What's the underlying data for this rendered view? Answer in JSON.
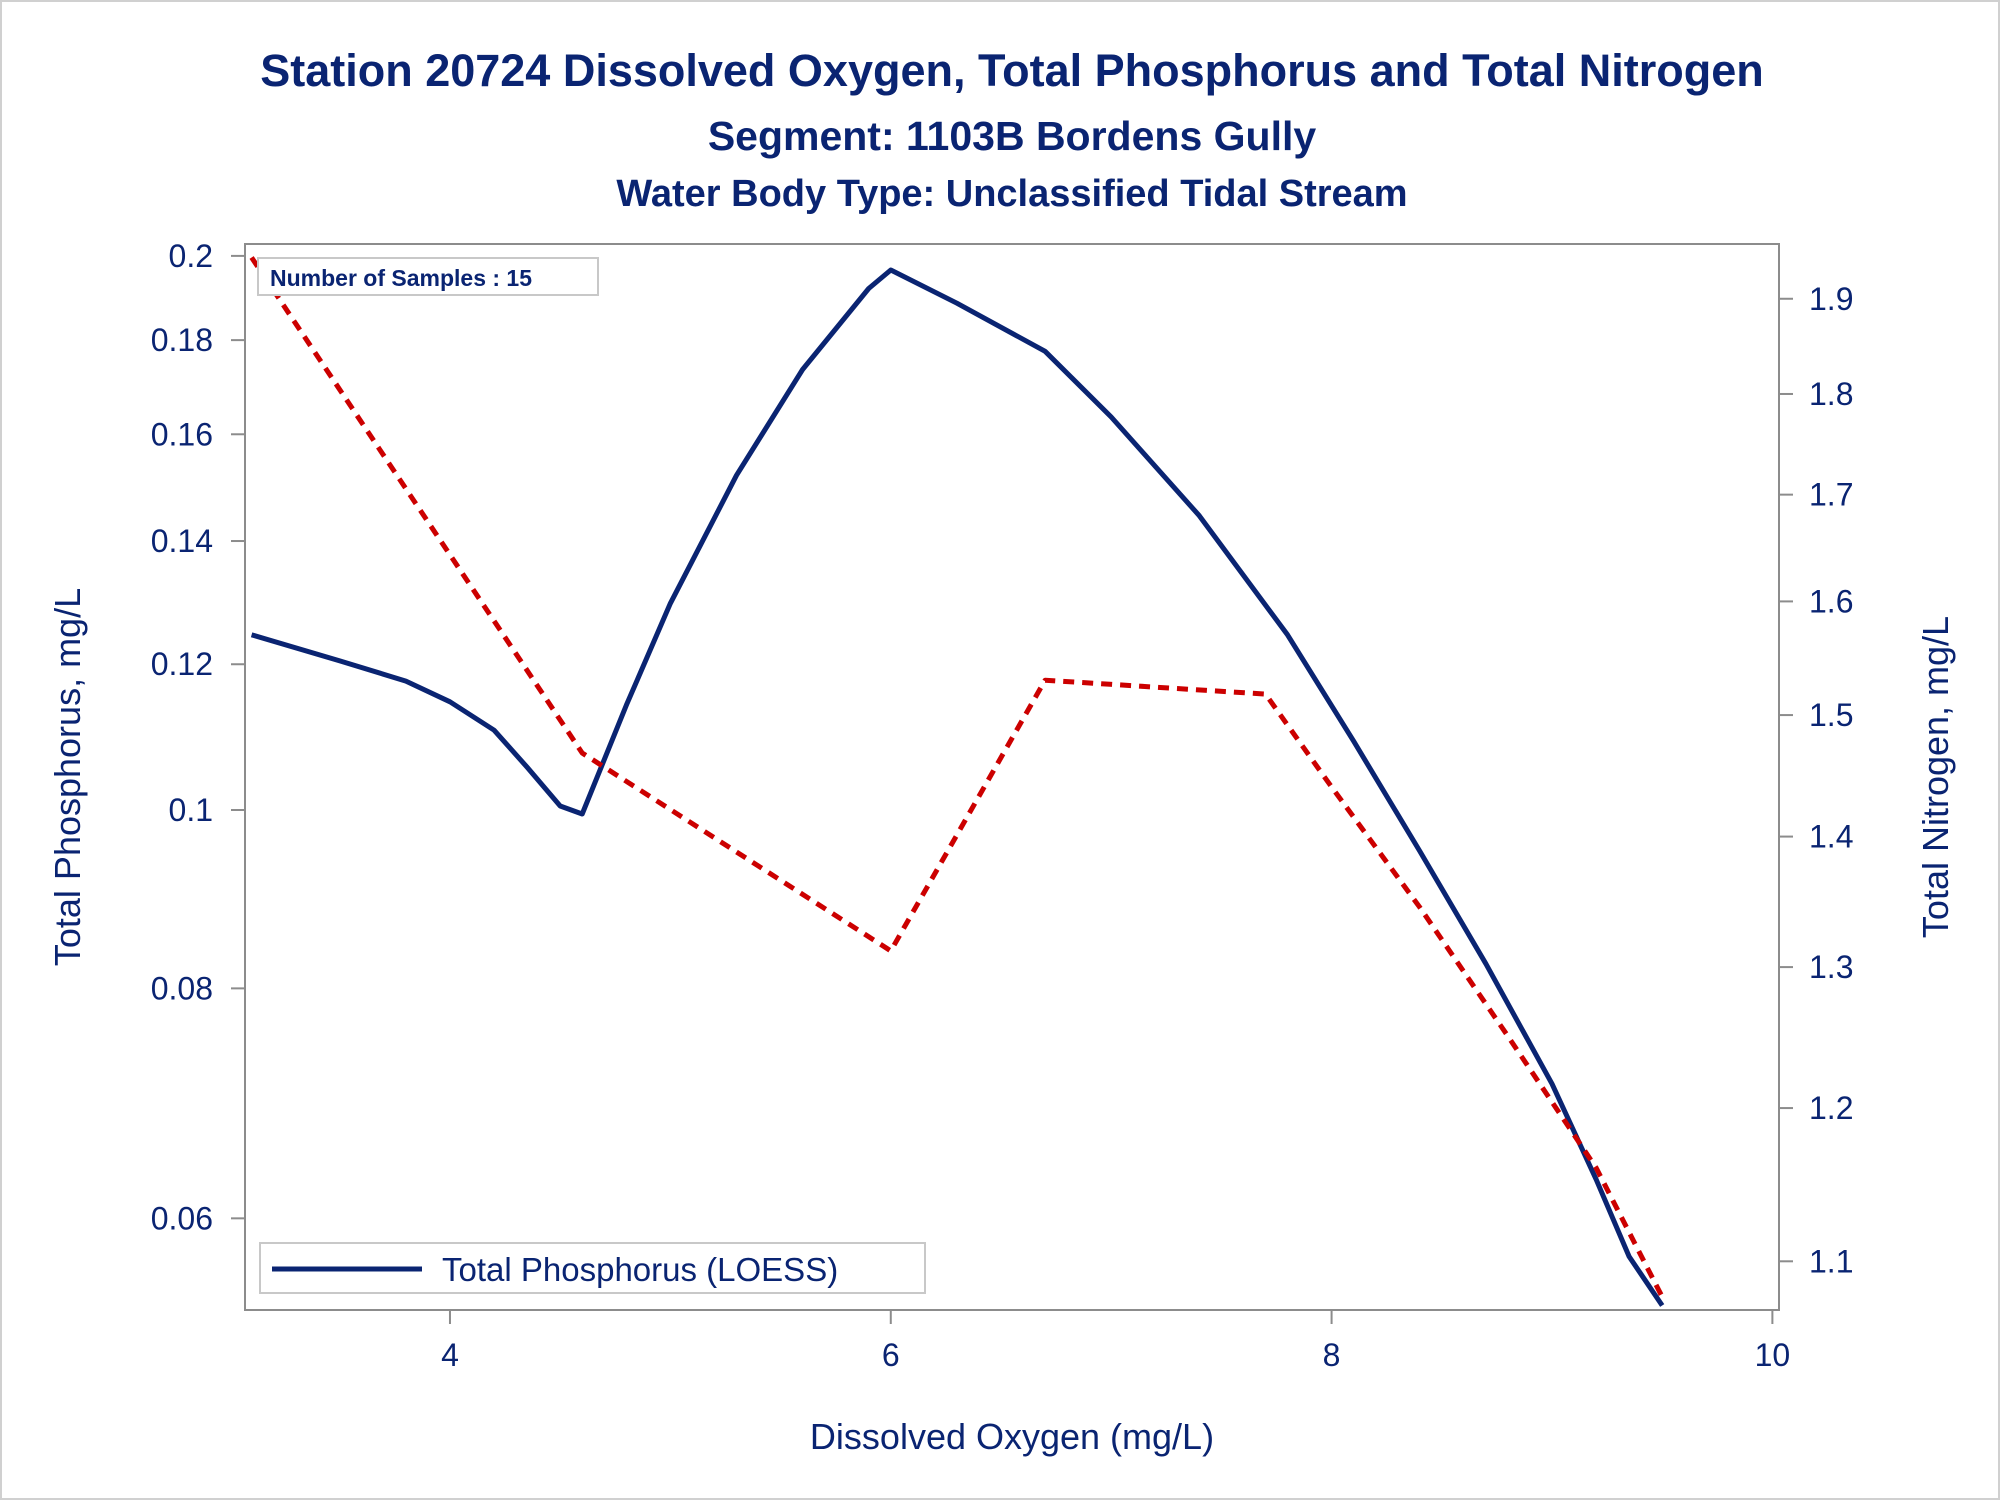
{
  "colors": {
    "text": "#0a2472",
    "phosphorus_line": "#0a2472",
    "nitrogen_line": "#cc0000",
    "axis": "#8c8c8c",
    "background": "#ffffff"
  },
  "chart_data": {
    "type": "line",
    "title": "Station 20724  Dissolved Oxygen, Total Phosphorus and Total Nitrogen",
    "subtitle": "Segment: 1103B  Bordens Gully",
    "subtitle2": "Water Body Type: Unclassified Tidal Stream",
    "xlabel": "Dissolved Oxygen (mg/L)",
    "ylabel": "Total Phosphorus, mg/L",
    "y2label": "Total Nitrogen, mg/L",
    "xlim": [
      3.07,
      10.03
    ],
    "ylim": [
      0.0535,
      0.203
    ],
    "y2lim": [
      1.07,
      1.96
    ],
    "y_scale": "log",
    "y2_scale": "log",
    "x_ticks": [
      "4",
      "6",
      "8",
      "10"
    ],
    "y_ticks": [
      "0.06",
      "0.08",
      "0.1",
      "0.12",
      "0.14",
      "0.16",
      "0.18",
      "0.2"
    ],
    "y2_ticks": [
      "1.1",
      "1.2",
      "1.3",
      "1.4",
      "1.5",
      "1.6",
      "1.7",
      "1.8",
      "1.9"
    ],
    "inset": "Number of Samples : 15",
    "legend": {
      "position": "bottom-left",
      "entries": [
        "Total Phosphorus (LOESS)"
      ]
    },
    "series": [
      {
        "name": "Total Phosphorus (LOESS)",
        "axis": "left",
        "style": "solid",
        "points": [
          [
            3.1,
            0.1245
          ],
          [
            3.5,
            0.1205
          ],
          [
            3.8,
            0.1175
          ],
          [
            4.0,
            0.1145
          ],
          [
            4.2,
            0.1105
          ],
          [
            4.35,
            0.1055
          ],
          [
            4.5,
            0.1005
          ],
          [
            4.6,
            0.0995
          ],
          [
            4.8,
            0.114
          ],
          [
            5.0,
            0.1295
          ],
          [
            5.3,
            0.152
          ],
          [
            5.6,
            0.1735
          ],
          [
            5.9,
            0.192
          ],
          [
            6.0,
            0.1965
          ],
          [
            6.3,
            0.1885
          ],
          [
            6.7,
            0.1775
          ],
          [
            7.0,
            0.1635
          ],
          [
            7.4,
            0.1445
          ],
          [
            7.8,
            0.1245
          ],
          [
            8.1,
            0.109
          ],
          [
            8.4,
            0.095
          ],
          [
            8.7,
            0.0825
          ],
          [
            9.0,
            0.071
          ],
          [
            9.2,
            0.063
          ],
          [
            9.35,
            0.0572
          ],
          [
            9.5,
            0.0538
          ]
        ]
      },
      {
        "name": "",
        "axis": "right",
        "style": "dashed",
        "points": [
          [
            3.1,
            1.945
          ],
          [
            4.6,
            1.468
          ],
          [
            6.0,
            1.312
          ],
          [
            6.7,
            1.53
          ],
          [
            7.7,
            1.518
          ],
          [
            8.0,
            1.44
          ],
          [
            8.4,
            1.345
          ],
          [
            8.8,
            1.25
          ],
          [
            9.2,
            1.16
          ],
          [
            9.5,
            1.078
          ]
        ]
      }
    ]
  }
}
